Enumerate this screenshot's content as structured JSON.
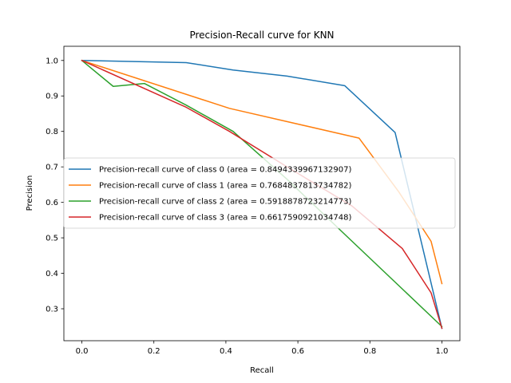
{
  "chart_data": {
    "type": "line",
    "title": "Precision-Recall curve for KNN",
    "xlabel": "Recall",
    "ylabel": "Precision",
    "xlim": [
      -0.05,
      1.05
    ],
    "ylim": [
      0.21,
      1.04
    ],
    "x_ticks": [
      0.0,
      0.2,
      0.4,
      0.6,
      0.8,
      1.0
    ],
    "x_tick_labels": [
      "0.0",
      "0.2",
      "0.4",
      "0.6",
      "0.8",
      "1.0"
    ],
    "y_ticks": [
      0.3,
      0.4,
      0.5,
      0.6,
      0.7,
      0.8,
      0.9,
      1.0
    ],
    "y_tick_labels": [
      "0.3",
      "0.4",
      "0.5",
      "0.6",
      "0.7",
      "0.8",
      "0.9",
      "1.0"
    ],
    "grid": false,
    "legend_position": "center-left",
    "series": [
      {
        "name": "Precision-recall curve of class 0 (area = 0.8494339967132907)",
        "color": "#1f77b4",
        "x": [
          0.0,
          0.29,
          0.42,
          0.57,
          0.73,
          0.87,
          0.98,
          1.0
        ],
        "y": [
          1.0,
          0.994,
          0.973,
          0.956,
          0.929,
          0.797,
          0.33,
          0.245
        ]
      },
      {
        "name": "Precision-recall curve of class 1 (area = 0.7684837813734782)",
        "color": "#ff7f0e",
        "x": [
          0.0,
          0.41,
          0.77,
          0.88,
          0.97,
          1.0
        ],
        "y": [
          1.0,
          0.865,
          0.781,
          0.63,
          0.49,
          0.371
        ]
      },
      {
        "name": "Precision-recall curve of class 2 (area = 0.5918878723214773)",
        "color": "#2ca02c",
        "x": [
          0.0,
          0.087,
          0.174,
          0.29,
          0.42,
          0.57,
          0.73,
          1.0
        ],
        "y": [
          1.0,
          0.927,
          0.935,
          0.874,
          0.8,
          0.665,
          0.51,
          0.25
        ]
      },
      {
        "name": "Precision-recall curve of class 3 (area = 0.6617590921034748)",
        "color": "#d62728",
        "x": [
          0.0,
          0.29,
          0.41,
          0.57,
          0.75,
          0.89,
          0.97,
          1.0
        ],
        "y": [
          1.0,
          0.868,
          0.8,
          0.7,
          0.59,
          0.47,
          0.345,
          0.245
        ]
      }
    ]
  }
}
